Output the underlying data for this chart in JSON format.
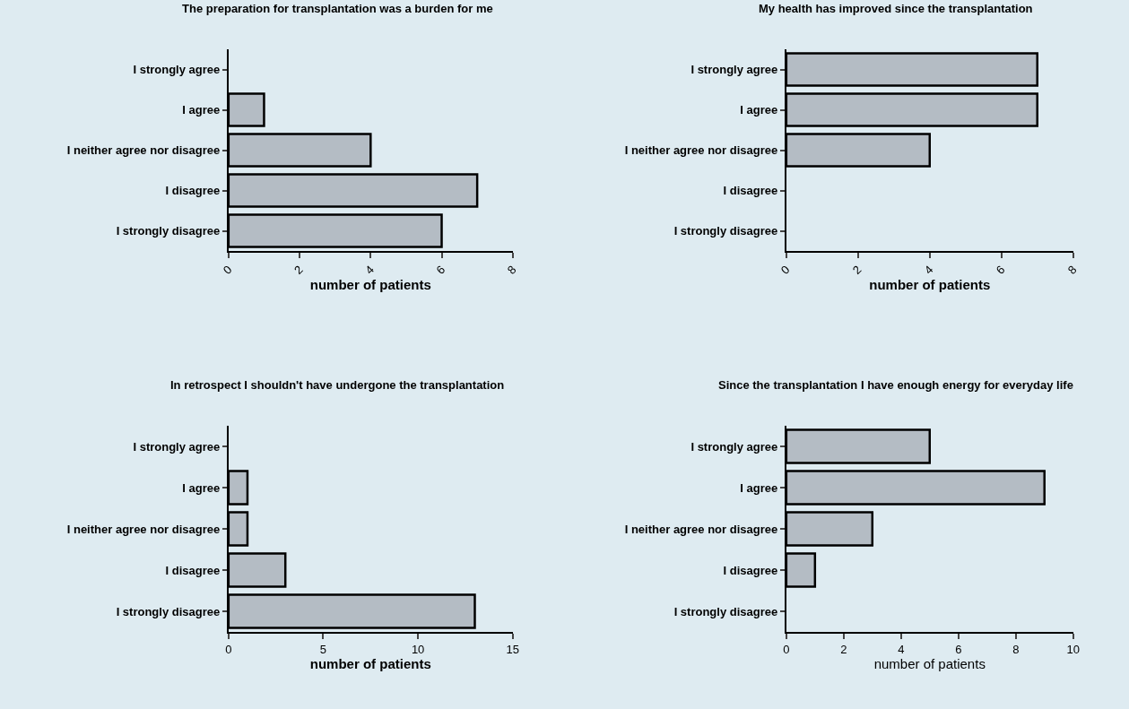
{
  "chart_data": [
    {
      "type": "bar",
      "orientation": "horizontal",
      "title": "The preparation for transplantation was a burden for me",
      "categories": [
        "I strongly agree",
        "I agree",
        "I neither agree nor disagree",
        "I disagree",
        "I strongly disagree"
      ],
      "values": [
        0,
        1,
        4,
        7,
        6
      ],
      "color": "#b4bcc4",
      "xlabel": "number of patients",
      "xlim": [
        0,
        8
      ],
      "xticks": [
        0,
        2,
        4,
        6,
        8
      ]
    },
    {
      "type": "bar",
      "orientation": "horizontal",
      "title": "My health has improved since the transplantation",
      "categories": [
        "I strongly agree",
        "I agree",
        "I neither agree nor disagree",
        "I disagree",
        "I strongly disagree"
      ],
      "values": [
        7,
        7,
        4,
        0,
        0
      ],
      "color": "#b4bcc4",
      "xlabel": "number of patients",
      "xlim": [
        0,
        8
      ],
      "xticks": [
        0,
        2,
        4,
        6,
        8
      ]
    },
    {
      "type": "bar",
      "orientation": "horizontal",
      "title": "In retrospect I shouldn't have undergone the transplantation",
      "categories": [
        "I strongly agree",
        "I agree",
        "I neither agree nor disagree",
        "I disagree",
        "I strongly disagree"
      ],
      "values": [
        0,
        1,
        1,
        3,
        13
      ],
      "color": "#b4bcc4",
      "xlabel": "number of patients",
      "xlim": [
        0,
        15
      ],
      "xticks": [
        0,
        5,
        10,
        15
      ]
    },
    {
      "type": "bar",
      "orientation": "horizontal",
      "title": "Since the transplantation I have enough energy for everyday life",
      "categories": [
        "I strongly agree",
        "I agree",
        "I neither agree nor disagree",
        "I disagree",
        "I strongly disagree"
      ],
      "values": [
        5,
        9,
        3,
        1,
        0
      ],
      "color": "#b4bcc4",
      "xlabel": "number of patients",
      "xlim": [
        0,
        10
      ],
      "xticks": [
        0,
        2,
        4,
        6,
        8,
        10
      ]
    }
  ]
}
